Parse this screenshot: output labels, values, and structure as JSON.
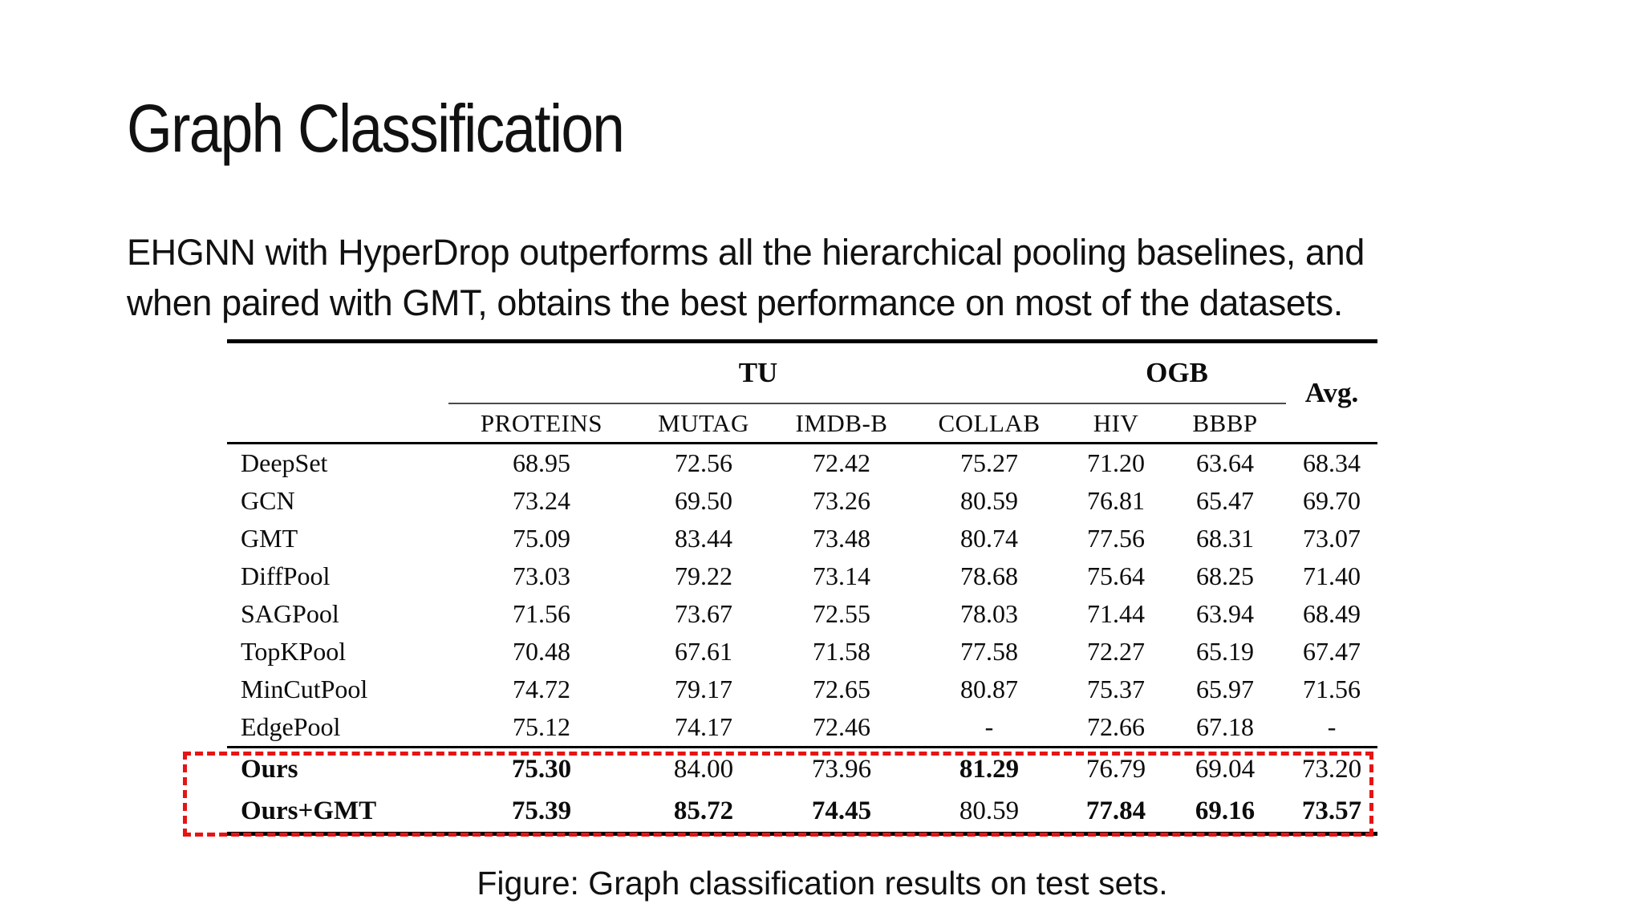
{
  "slide": {
    "title": "Graph Classification",
    "subtitle_lines": [
      "EHGNN with HyperDrop outperforms all the hierarchical pooling baselines, and",
      "when paired with GMT, obtains the best performance on most of the datasets."
    ],
    "caption": "Figure: Graph classification results on test sets."
  },
  "table": {
    "group_headers": {
      "tu": "TU",
      "ogb": "OGB",
      "avg": "Avg."
    },
    "columns": [
      "PROTEINS",
      "MUTAG",
      "IMDB-B",
      "COLLAB",
      "HIV",
      "BBBP"
    ],
    "missing_value": "-",
    "highlight_border_color": "#e61414",
    "baseline_rows": [
      {
        "label": "DeepSet",
        "values": [
          "68.95",
          "72.56",
          "72.42",
          "75.27",
          "71.20",
          "63.64",
          "68.34"
        ]
      },
      {
        "label": "GCN",
        "values": [
          "73.24",
          "69.50",
          "73.26",
          "80.59",
          "76.81",
          "65.47",
          "69.70"
        ]
      },
      {
        "label": "GMT",
        "values": [
          "75.09",
          "83.44",
          "73.48",
          "80.74",
          "77.56",
          "68.31",
          "73.07"
        ]
      },
      {
        "label": "DiffPool",
        "values": [
          "73.03",
          "79.22",
          "73.14",
          "78.68",
          "75.64",
          "68.25",
          "71.40"
        ]
      },
      {
        "label": "SAGPool",
        "values": [
          "71.56",
          "73.67",
          "72.55",
          "78.03",
          "71.44",
          "63.94",
          "68.49"
        ]
      },
      {
        "label": "TopKPool",
        "values": [
          "70.48",
          "67.61",
          "71.58",
          "77.58",
          "72.27",
          "65.19",
          "67.47"
        ]
      },
      {
        "label": "MinCutPool",
        "values": [
          "74.72",
          "79.17",
          "72.65",
          "80.87",
          "75.37",
          "65.97",
          "71.56"
        ]
      },
      {
        "label": "EdgePool",
        "values": [
          "75.12",
          "74.17",
          "72.46",
          "-",
          "72.66",
          "67.18",
          "-"
        ]
      }
    ],
    "highlighted_rows": [
      {
        "label": "Ours",
        "label_bold": true,
        "values": [
          "75.30",
          "84.00",
          "73.96",
          "81.29",
          "76.79",
          "69.04",
          "73.20"
        ],
        "bold": [
          1,
          0,
          0,
          1,
          0,
          0,
          0
        ]
      },
      {
        "label": "Ours+GMT",
        "label_bold": true,
        "values": [
          "75.39",
          "85.72",
          "74.45",
          "80.59",
          "77.84",
          "69.16",
          "73.57"
        ],
        "bold": [
          1,
          1,
          1,
          0,
          1,
          1,
          1
        ]
      }
    ]
  }
}
